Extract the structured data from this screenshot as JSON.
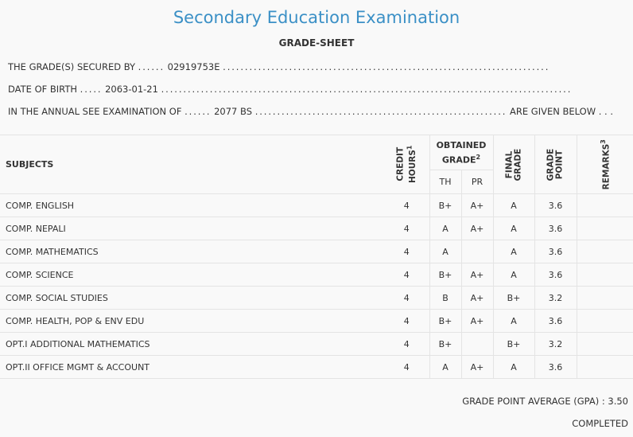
{
  "header": {
    "title": "Secondary Education Examination",
    "subtitle": "GRADE-SHEET"
  },
  "info": {
    "secured_by_label": "THE GRADE(S) SECURED BY",
    "secured_by_value": "02919753E",
    "dob_label": "DATE OF BIRTH",
    "dob_value": "2063-01-21",
    "exam_label": "IN THE ANNUAL SEE EXAMINATION OF",
    "exam_value": "2077 BS",
    "exam_suffix": "ARE GIVEN BELOW . . ."
  },
  "table": {
    "headers": {
      "subjects": "SUBJECTS",
      "credit_hours": "CREDIT HOURS",
      "credit_sup": "1",
      "obtained_grade": "OBTAINED GRADE",
      "obtained_sup": "2",
      "th": "TH",
      "pr": "PR",
      "final_grade": "FINAL GRADE",
      "grade_point": "GRADE POINT",
      "remarks": "REMARKS",
      "remarks_sup": "3"
    },
    "rows": [
      {
        "subject": "COMP. ENGLISH",
        "credit": "4",
        "th": "B+",
        "pr": "A+",
        "final": "A",
        "gp": "3.6",
        "remarks": ""
      },
      {
        "subject": "COMP. NEPALI",
        "credit": "4",
        "th": "A",
        "pr": "A+",
        "final": "A",
        "gp": "3.6",
        "remarks": ""
      },
      {
        "subject": "COMP. MATHEMATICS",
        "credit": "4",
        "th": "A",
        "pr": "",
        "final": "A",
        "gp": "3.6",
        "remarks": ""
      },
      {
        "subject": "COMP. SCIENCE",
        "credit": "4",
        "th": "B+",
        "pr": "A+",
        "final": "A",
        "gp": "3.6",
        "remarks": ""
      },
      {
        "subject": "COMP. SOCIAL STUDIES",
        "credit": "4",
        "th": "B",
        "pr": "A+",
        "final": "B+",
        "gp": "3.2",
        "remarks": ""
      },
      {
        "subject": "COMP. HEALTH, POP & ENV EDU",
        "credit": "4",
        "th": "B+",
        "pr": "A+",
        "final": "A",
        "gp": "3.6",
        "remarks": ""
      },
      {
        "subject": "OPT.I ADDITIONAL MATHEMATICS",
        "credit": "4",
        "th": "B+",
        "pr": "",
        "final": "B+",
        "gp": "3.2",
        "remarks": ""
      },
      {
        "subject": "OPT.II OFFICE MGMT & ACCOUNT",
        "credit": "4",
        "th": "A",
        "pr": "A+",
        "final": "A",
        "gp": "3.6",
        "remarks": ""
      }
    ]
  },
  "footer": {
    "gpa_text": "GRADE POINT AVERAGE (GPA) : 3.50",
    "status": "COMPLETED"
  }
}
